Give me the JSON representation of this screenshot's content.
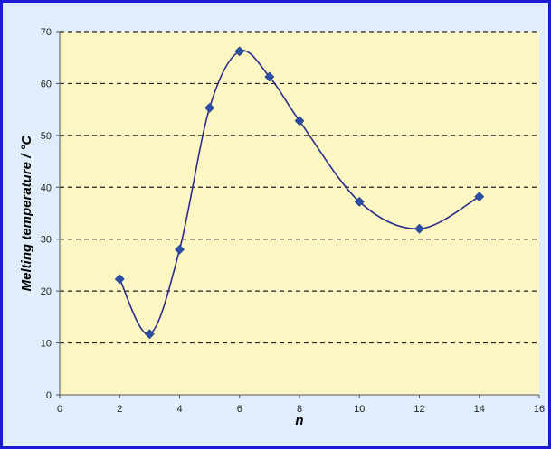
{
  "chart_data": {
    "type": "line",
    "title": "",
    "xlabel": "n",
    "ylabel": "Melting temperature / °C",
    "xlim": [
      0,
      16
    ],
    "ylim": [
      0,
      70
    ],
    "xticks": [
      "0",
      "2",
      "4",
      "6",
      "8",
      "10",
      "12",
      "14",
      "16"
    ],
    "yticks": [
      "0",
      "10",
      "20",
      "30",
      "40",
      "50",
      "60",
      "70"
    ],
    "grid": "horizontal dashed",
    "legend": "none",
    "series": [
      {
        "x": [
          2,
          3,
          4,
          5,
          6,
          7,
          8,
          10,
          12,
          14
        ],
        "y": [
          22.3,
          11.7,
          28,
          55.3,
          66.2,
          61.3,
          52.8,
          37.2,
          32,
          38.2
        ],
        "color": "#2c2c8c",
        "marker": "diamond",
        "marker_color": "#2b4fa8",
        "smoothed": true
      }
    ],
    "plot_background": "#fbf6c2",
    "figure_background": "#dfeefa",
    "border_color": "#1a1ad6"
  }
}
